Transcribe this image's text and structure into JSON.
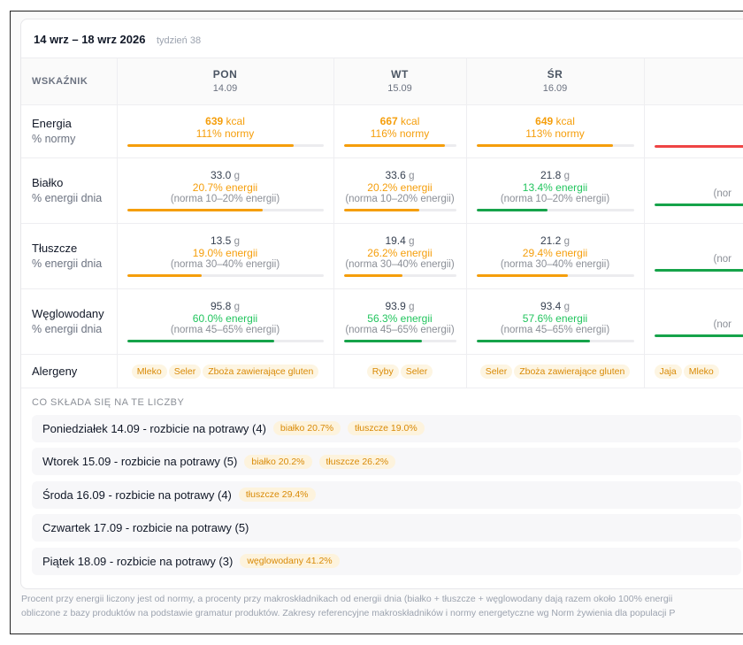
{
  "header": {
    "week_range": "14 wrz – 18 wrz 2026",
    "week_number": "tydzień 38"
  },
  "table": {
    "indicator_header": "WSKAŹNIK",
    "days": [
      {
        "name": "PON",
        "date": "14.09"
      },
      {
        "name": "WT",
        "date": "15.09"
      },
      {
        "name": "ŚR",
        "date": "16.09"
      },
      {
        "name": "",
        "date": ""
      }
    ],
    "rows": {
      "energia": {
        "label": "Energia",
        "sub": "% normy"
      },
      "bialko": {
        "label": "Białko",
        "sub": "% energii dnia"
      },
      "tluszcze": {
        "label": "Tłuszcze",
        "sub": "% energii dnia"
      },
      "weglo": {
        "label": "Węglowodany",
        "sub": "% energii dnia"
      },
      "alergeny": {
        "label": "Alergeny"
      }
    },
    "cells": {
      "energia": [
        {
          "value": "639",
          "unit": "kcal",
          "pct": "111% normy"
        },
        {
          "value": "667",
          "unit": "kcal",
          "pct": "116% normy"
        },
        {
          "value": "649",
          "unit": "kcal",
          "pct": "113% normy"
        }
      ],
      "bialko": [
        {
          "value": "33.0",
          "unit": "g",
          "pct": "20.7% energii",
          "norm": "(norma 10–20% energii)"
        },
        {
          "value": "33.6",
          "unit": "g",
          "pct": "20.2% energii",
          "norm": "(norma 10–20% energii)"
        },
        {
          "value": "21.8",
          "unit": "g",
          "pct": "13.4% energii",
          "norm": "(norma 10–20% energii)"
        },
        {
          "norm": "(nor"
        }
      ],
      "tluszcze": [
        {
          "value": "13.5",
          "unit": "g",
          "pct": "19.0% energii",
          "norm": "(norma 30–40% energii)"
        },
        {
          "value": "19.4",
          "unit": "g",
          "pct": "26.2% energii",
          "norm": "(norma 30–40% energii)"
        },
        {
          "value": "21.2",
          "unit": "g",
          "pct": "29.4% energii",
          "norm": "(norma 30–40% energii)"
        },
        {
          "norm": "(nor"
        }
      ],
      "weglo": [
        {
          "value": "95.8",
          "unit": "g",
          "pct": "60.0% energii",
          "norm": "(norma 45–65% energii)"
        },
        {
          "value": "93.9",
          "unit": "g",
          "pct": "56.3% energii",
          "norm": "(norma 45–65% energii)"
        },
        {
          "value": "93.4",
          "unit": "g",
          "pct": "57.6% energii",
          "norm": "(norma 45–65% energii)"
        },
        {
          "norm": "(nor"
        }
      ]
    },
    "bar_levels": {
      "energia": [
        0.85,
        0.9,
        0.87,
        1.0
      ],
      "bialko": [
        0.69,
        0.67,
        0.45,
        1.0
      ],
      "tluszcze": [
        0.38,
        0.52,
        0.58,
        1.0
      ],
      "weglo": [
        0.75,
        0.7,
        0.72,
        1.0
      ]
    },
    "allergens": [
      [
        "Mleko",
        "Seler",
        "Zboża zawierające gluten"
      ],
      [
        "Ryby",
        "Seler"
      ],
      [
        "Seler",
        "Zboża zawierające gluten"
      ],
      [
        "Jaja",
        "Mleko"
      ]
    ]
  },
  "breakdown": {
    "title": "CO SKŁADA SIĘ NA TE LICZBY",
    "items": [
      {
        "label": "Poniedziałek 14.09 - rozbicie na potrawy (4)",
        "pills": [
          "białko 20.7%",
          "tłuszcze 19.0%"
        ]
      },
      {
        "label": "Wtorek 15.09 - rozbicie na potrawy (5)",
        "pills": [
          "białko 20.2%",
          "tłuszcze 26.2%"
        ]
      },
      {
        "label": "Środa 16.09 - rozbicie na potrawy (4)",
        "pills": [
          "tłuszcze 29.4%"
        ]
      },
      {
        "label": "Czwartek 17.09 - rozbicie na potrawy (5)",
        "pills": []
      },
      {
        "label": "Piątek 18.09 - rozbicie na potrawy (3)",
        "pills": [
          "węglowodany 41.2%"
        ]
      }
    ]
  },
  "footnote": {
    "line1": "Procent przy energii liczony jest od normy, a procenty przy makroskładnikach od energii dnia (białko + tłuszcze + węglowodany dają razem około 100% energii",
    "line2": "obliczone z bazy produktów na podstawie gramatur produktów. Zakresy referencyjne makroskładników i normy energetyczne wg Norm żywienia dla populacji P"
  }
}
